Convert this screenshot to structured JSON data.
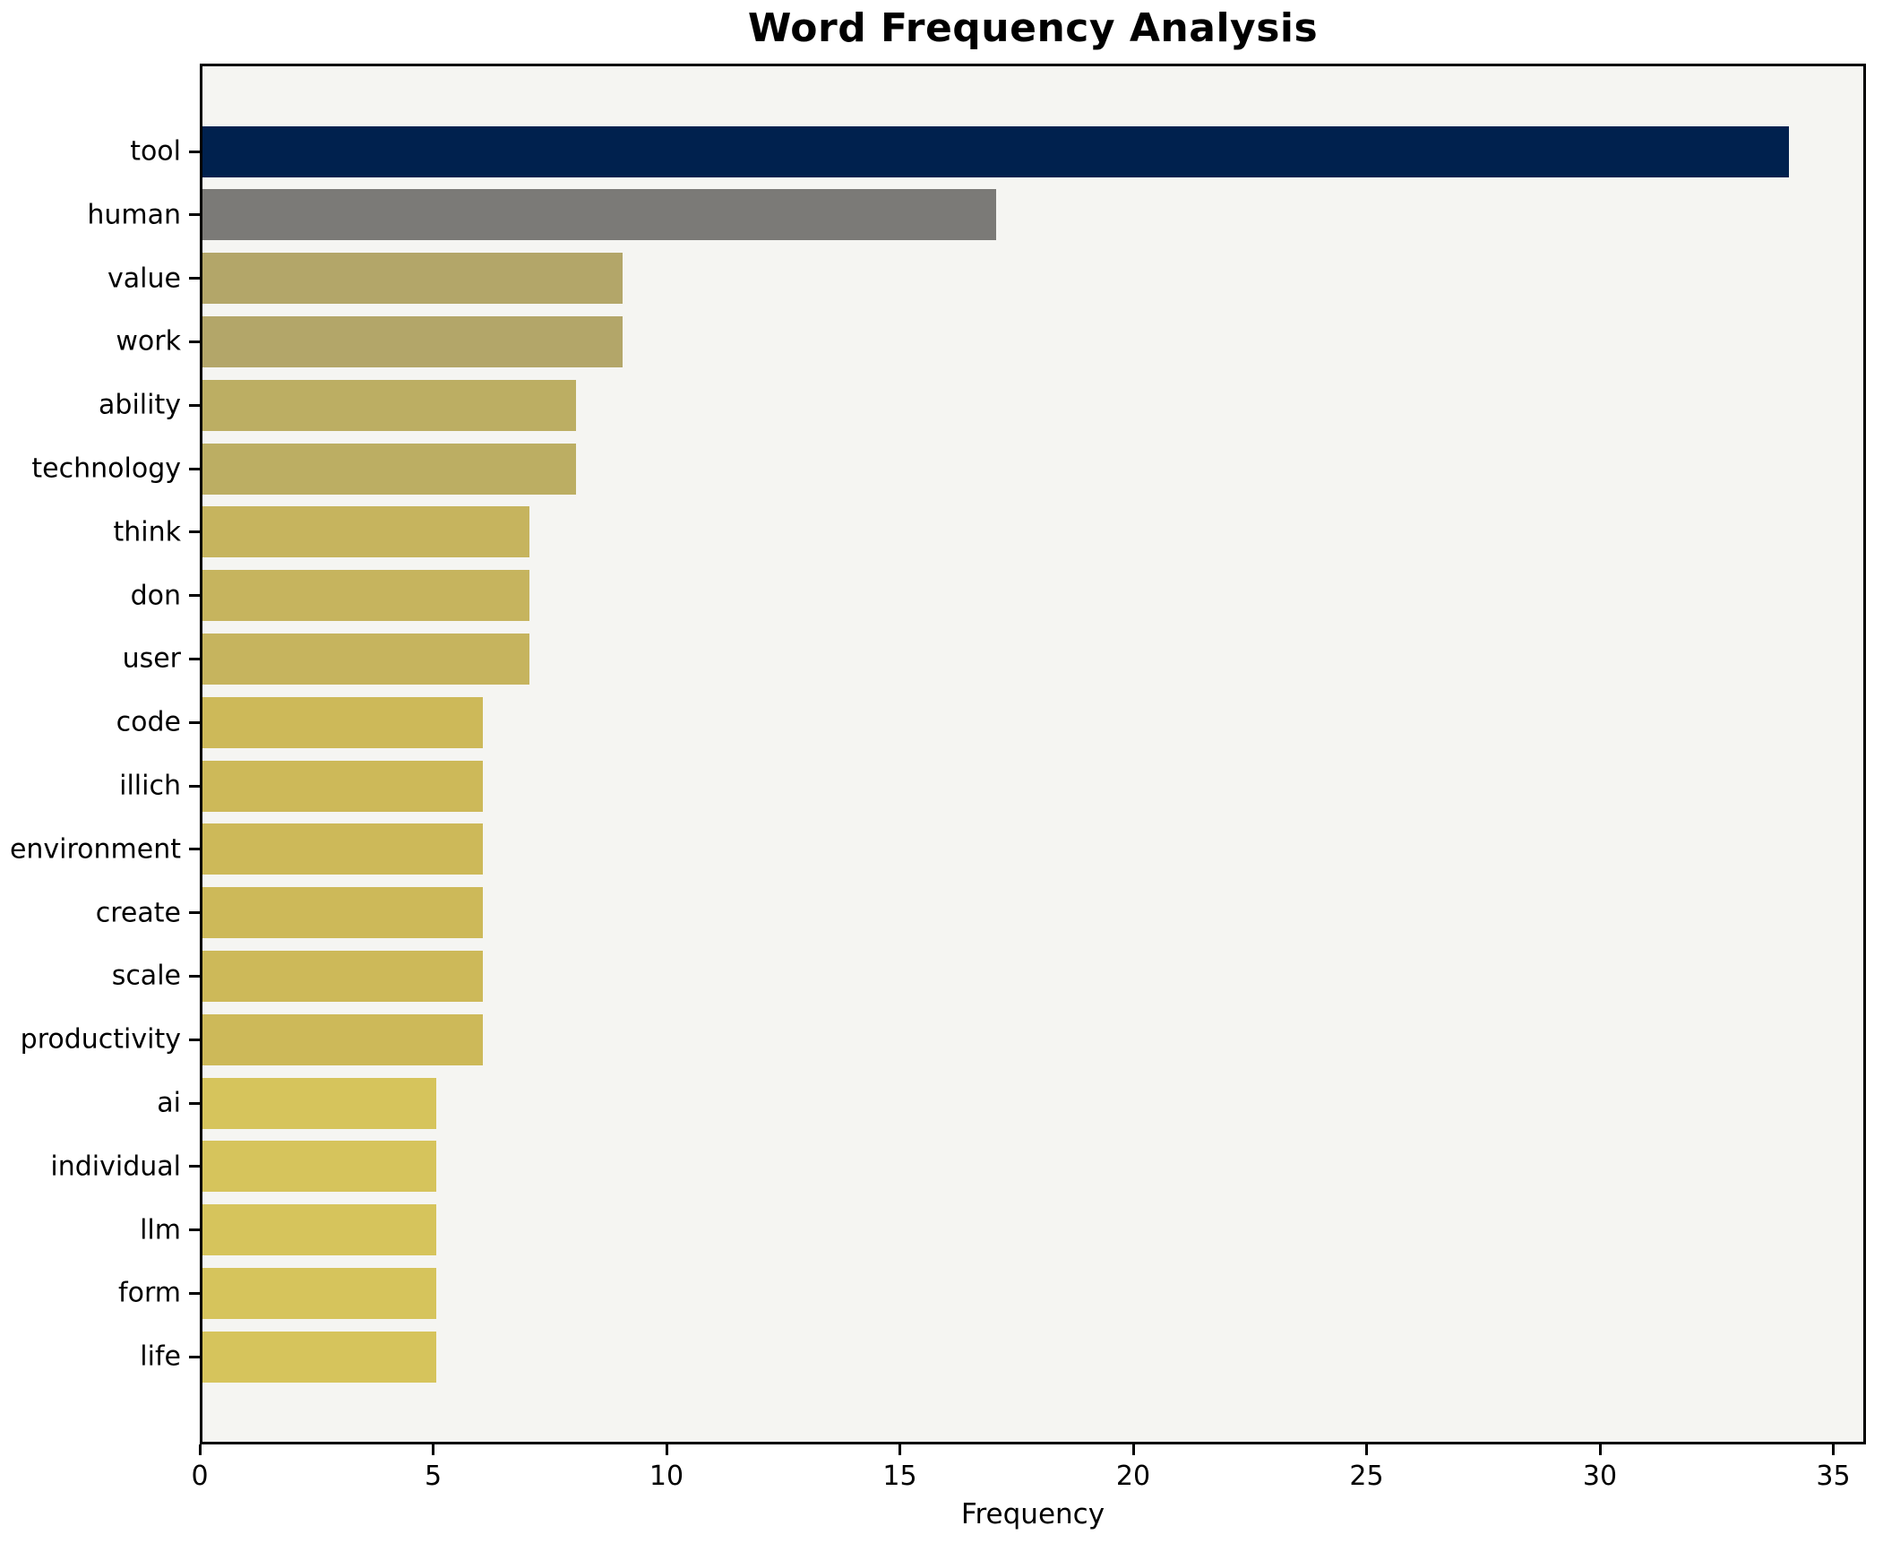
{
  "title": "Word Frequency Analysis",
  "chart_data": {
    "type": "bar",
    "orientation": "horizontal",
    "title": "Word Frequency Analysis",
    "xlabel": "Frequency",
    "ylabel": "",
    "categories": [
      "tool",
      "human",
      "value",
      "work",
      "ability",
      "technology",
      "think",
      "don",
      "user",
      "code",
      "illich",
      "environment",
      "create",
      "scale",
      "productivity",
      "ai",
      "individual",
      "llm",
      "form",
      "life"
    ],
    "values": [
      34,
      17,
      9,
      9,
      8,
      8,
      7,
      7,
      7,
      6,
      6,
      6,
      6,
      6,
      6,
      5,
      5,
      5,
      5,
      5
    ],
    "bar_colors": [
      "#00214e",
      "#7b7a77",
      "#b3a669",
      "#b3a669",
      "#bcae63",
      "#bcae63",
      "#c6b45e",
      "#c6b45e",
      "#c6b45e",
      "#cdb959",
      "#cdb959",
      "#cdb959",
      "#cdb959",
      "#cdb959",
      "#cdb959",
      "#d6c45c",
      "#d6c45c",
      "#d6c45c",
      "#d6c45c",
      "#d6c45c"
    ],
    "xlim": [
      0,
      35.7
    ],
    "xticks": [
      0,
      5,
      10,
      15,
      20,
      25,
      30,
      35
    ],
    "grid": false,
    "legend_position": "none",
    "plot_background": "#f5f5f2",
    "figure_background": "#ffffff",
    "spine_color": "#000000"
  }
}
